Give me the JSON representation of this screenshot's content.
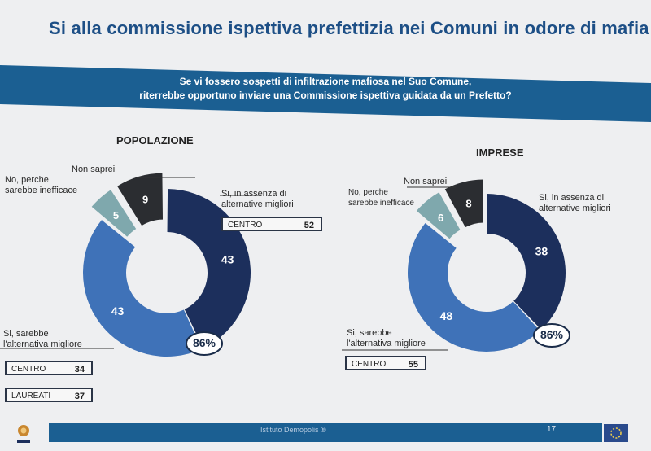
{
  "title": "Si alla commissione ispettiva prefettizia nei Comuni in odore di mafia",
  "question": {
    "line1": "Se vi fossero sospetti di infiltrazione mafiosa nel Suo Comune,",
    "line2": "riterrebbe opportuno inviare una Commissione ispettiva guidata da un Prefetto?"
  },
  "colors": {
    "band": "#1b5f92",
    "dark_navy": "#1c2f5c",
    "medium_blue": "#3f72b8",
    "teal": "#7fa8ad",
    "dark_grey": "#2b2d31"
  },
  "footer": {
    "text": "Istituto Demopolis ®",
    "page": "17"
  },
  "chart_data": [
    {
      "type": "pie",
      "variant": "donut",
      "title": "POPOLAZIONE",
      "categories": [
        "Si, in assenza di alternative migliori",
        "Si, sarebbe l'alternativa migliore",
        "No, perche sarebbe inefficace",
        "Non saprei"
      ],
      "values": [
        43,
        43,
        5,
        9
      ],
      "combined_yes_pct": "86%",
      "sub_values": [
        {
          "group": "CENTRO",
          "value": 52,
          "refers_to": "Si, in assenza di alternative migliori"
        },
        {
          "group": "CENTRO",
          "value": 34,
          "refers_to": "Si, sarebbe l'alternativa migliore"
        },
        {
          "group": "LAUREATI",
          "value": 37,
          "refers_to": "Si, sarebbe l'alternativa migliore"
        }
      ]
    },
    {
      "type": "pie",
      "variant": "donut",
      "title": "IMPRESE",
      "categories": [
        "Si, in assenza di alternative migliori",
        "Si, sarebbe l'alternativa migliore",
        "No, perche sarebbe inefficace",
        "Non saprei"
      ],
      "values": [
        38,
        48,
        6,
        8
      ],
      "combined_yes_pct": "86%",
      "sub_values": [
        {
          "group": "CENTRO",
          "value": 55,
          "refers_to": "Si, sarebbe l'alternativa migliore"
        }
      ]
    }
  ],
  "labels": {
    "pop_title": "POPOLAZIONE",
    "imp_title": "IMPRESE",
    "pop_yes_absence_l1": "Si, in assenza di",
    "pop_yes_absence_l2": "alternative migliori",
    "pop_yes_best_l1": "Si, sarebbe",
    "pop_yes_best_l2": "l'alternativa migliore",
    "pop_no_l1": "No, perche",
    "pop_no_l2": "sarebbe inefficace",
    "pop_dk": "Non saprei",
    "imp_yes_absence_l1": "Si, in assenza di",
    "imp_yes_absence_l2": "alternative migliori",
    "imp_yes_best_l1": "Si, sarebbe",
    "imp_yes_best_l2": "l'alternativa migliore",
    "imp_no_l1": "No, perche",
    "imp_no_l2": "sarebbe inefficace",
    "imp_dk": "Non saprei",
    "pop_box1_label": "CENTRO",
    "pop_box1_value": "52",
    "pop_box2_label": "CENTRO",
    "pop_box2_value": "34",
    "pop_box3_label": "LAUREATI",
    "pop_box3_value": "37",
    "imp_box1_label": "CENTRO",
    "imp_box1_value": "55",
    "pop_total": "86%",
    "imp_total": "86%"
  }
}
